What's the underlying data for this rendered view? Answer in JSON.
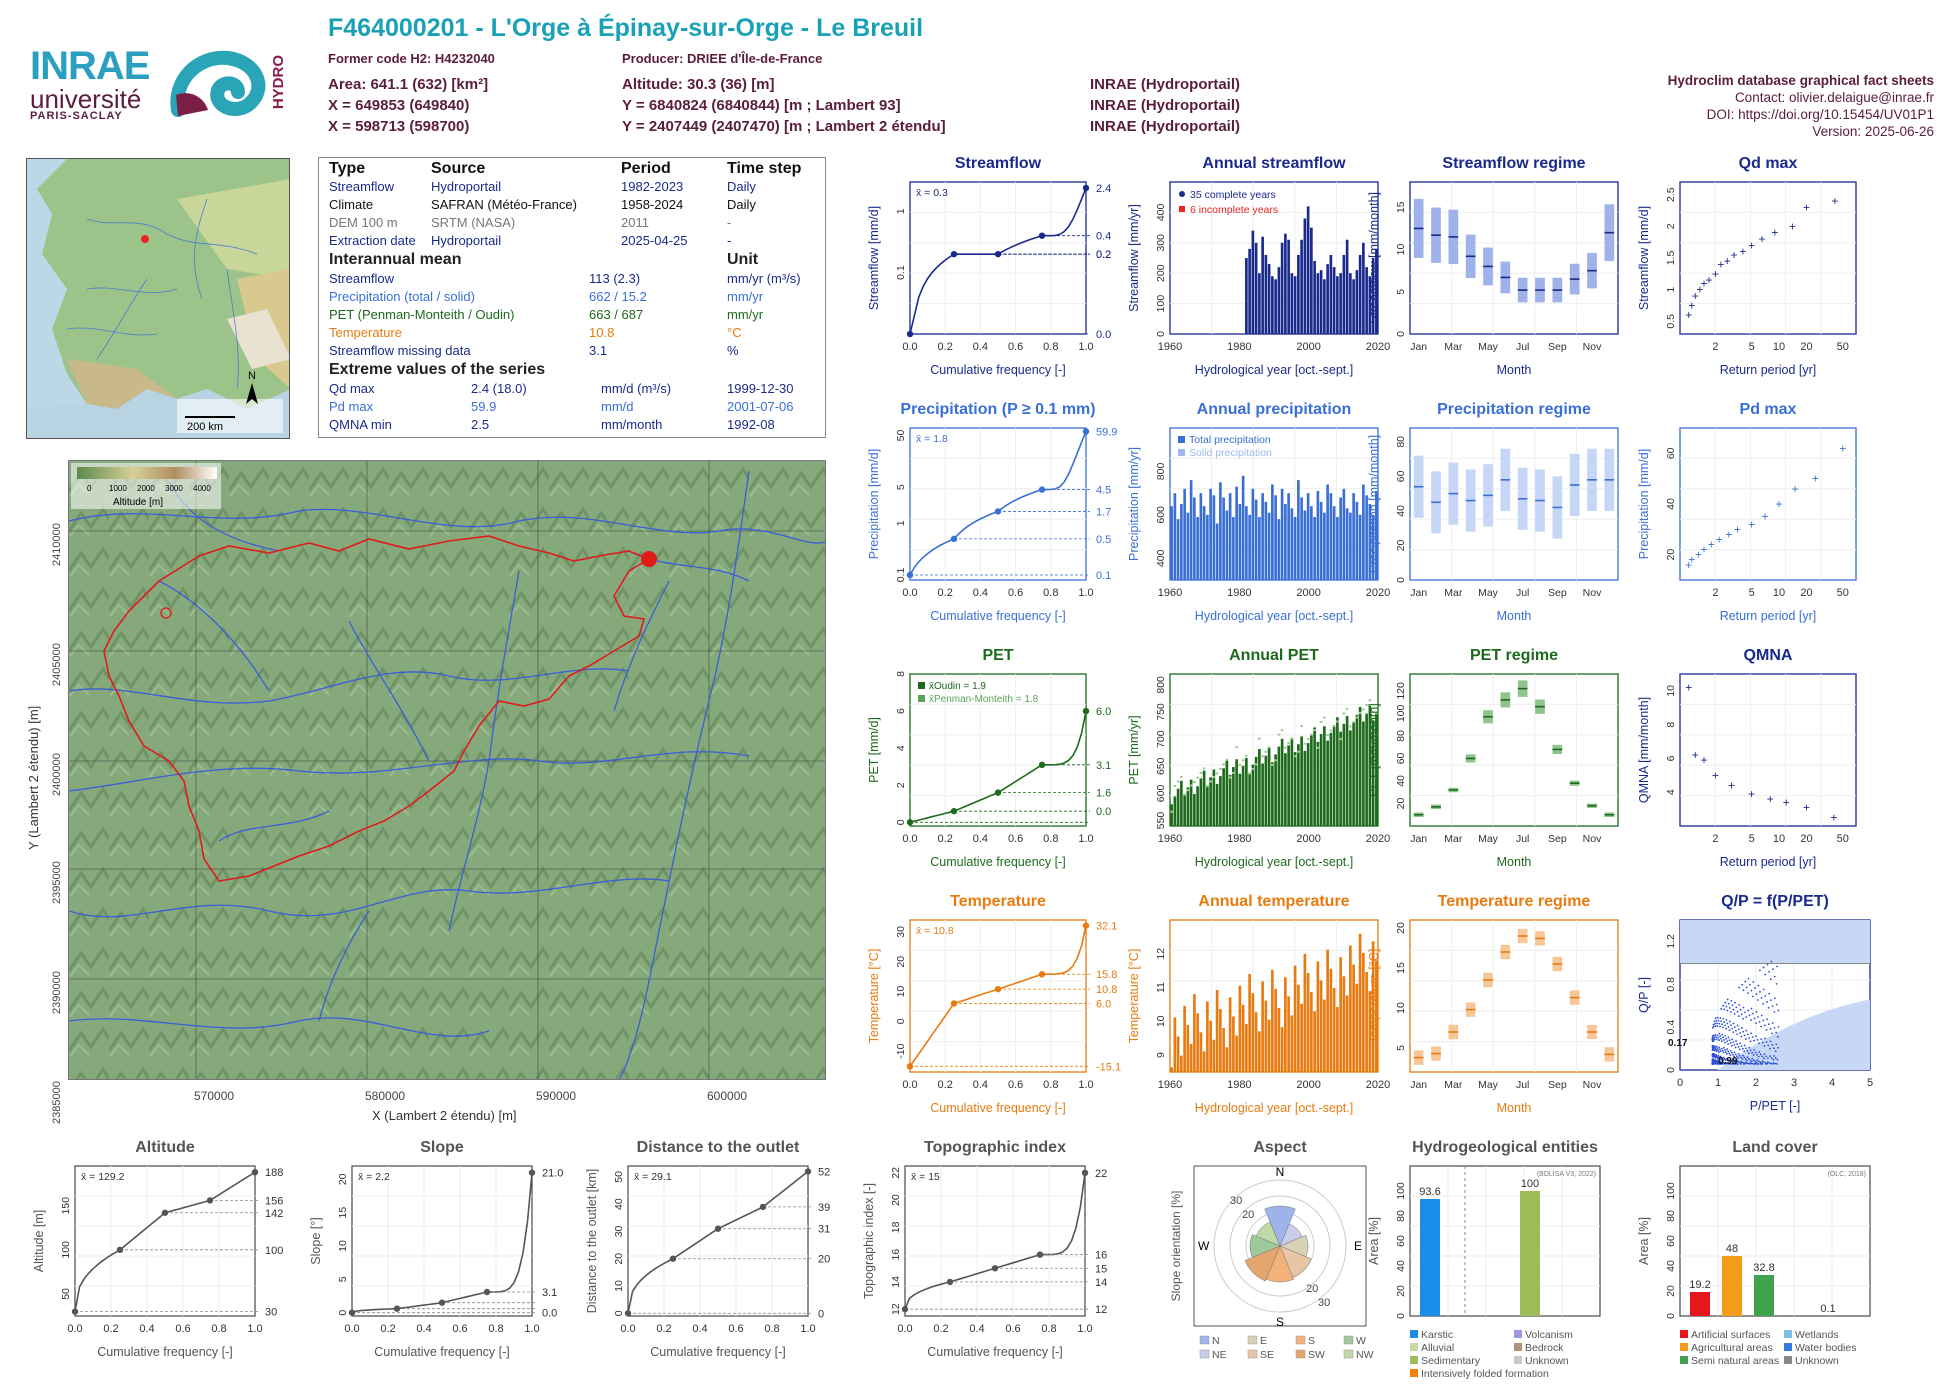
{
  "header": {
    "logo_inrae": "INRAE",
    "logo_universite": "université",
    "logo_paris_saclay": "PARIS-SACLAY",
    "logo_hydro": "HYDRO",
    "title": "F464000201 - L'Orge à Épinay-sur-Orge - Le Breuil",
    "former_code": "Former code H2: H4232040",
    "producer": "Producer: DRIEE d'Île-de-France",
    "area": "Area: 641.1 (632) [km²]",
    "x1": "X = 649853 (649840)",
    "x2": "X = 598713 (598700)",
    "altitude": "Altitude: 30.3 (36) [m]",
    "y1": "Y = 6840824 (6840844) [m ; Lambert 93]",
    "y2": "Y = 2407449 (2407470) [m ; Lambert 2 étendu]",
    "src1": "INRAE (Hydroportail)",
    "src2": "INRAE (Hydroportail)",
    "src3": "INRAE (Hydroportail)",
    "db_title": "Hydroclim database graphical fact sheets",
    "contact": "Contact: olivier.delaigue@inrae.fr",
    "doi": "DOI: https://doi.org/10.15454/UV01P1",
    "version": "Version: 2025-06-26"
  },
  "info": {
    "col_type": "Type",
    "col_source": "Source",
    "col_period": "Period",
    "col_timestep": "Time step",
    "rows": [
      {
        "type": "Streamflow",
        "source": "Hydroportail",
        "period": "1982-2023",
        "step": "Daily"
      },
      {
        "type": "Climate",
        "source": "SAFRAN (Météo-France)",
        "period": "1958-2024",
        "step": "Daily"
      },
      {
        "type": "DEM 100 m",
        "source": "SRTM (NASA)",
        "period": "2011",
        "step": "-"
      },
      {
        "type": "Extraction date",
        "source": "Hydroportail",
        "period": "2025-04-25",
        "step": "-"
      }
    ],
    "interannual": "Interannual mean",
    "unit": "Unit",
    "means": [
      {
        "label": "Streamflow",
        "value": "113 (2.3)",
        "unit": "mm/yr (m³/s)"
      },
      {
        "label": "Precipitation (total / solid)",
        "value": "662 / 15.2",
        "unit": "mm/yr"
      },
      {
        "label": "PET (Penman-Monteith / Oudin)",
        "value": "663 / 687",
        "unit": "mm/yr"
      },
      {
        "label": "Temperature",
        "value": "10.8",
        "unit": "°C"
      },
      {
        "label": "Streamflow missing data",
        "value": "3.1",
        "unit": "%"
      }
    ],
    "extreme": "Extreme values of the series",
    "extremes": [
      {
        "label": "Qd max",
        "value": "2.4 (18.0)",
        "unit": "mm/d (m³/s)",
        "date": "1999-12-30"
      },
      {
        "label": "Pd max",
        "value": "59.9",
        "unit": "mm/d",
        "date": "2001-07-06"
      },
      {
        "label": "QMNA min",
        "value": "2.5",
        "unit": "mm/month",
        "date": "1992-08"
      }
    ]
  },
  "inset_map": {
    "scale": "200 km",
    "north": "N"
  },
  "main_map": {
    "legend_title": "Altitude [m]",
    "legend_ticks": [
      "0",
      "1000",
      "2000",
      "3000",
      "4000"
    ],
    "xlabel": "X (Lambert 2 étendu) [m]",
    "ylabel": "Y (Lambert 2 étendu) [m]",
    "xticks": [
      "570000",
      "580000",
      "590000",
      "600000"
    ],
    "yticks": [
      "2410000",
      "2405000",
      "2400000",
      "2395000",
      "2390000",
      "2385000",
      "2380000"
    ]
  },
  "colors": {
    "streamflow": "#1a2a8c",
    "precip": "#3a6fd6",
    "pet": "#1d6a1d",
    "temp": "#e87b10",
    "grey": "#555555",
    "title_teal": "#19a2b5",
    "maroon": "#5a1e3c"
  },
  "panels": {
    "streamflow": {
      "title": "Streamflow",
      "ylabel": "Streamflow [mm/d]",
      "xlabel": "Cumulative frequency [-]",
      "mean": "x̄ = 0.3",
      "right": [
        "2.4",
        "0.4",
        "0.2",
        "0.2",
        "0.0"
      ]
    },
    "annual_streamflow": {
      "title": "Annual streamflow",
      "ylabel": "Streamflow [mm/yr]",
      "xlabel": "Hydrological year [oct.-sept.]",
      "legend": [
        "35 complete years",
        "6 incomplete years"
      ]
    },
    "streamflow_regime": {
      "title": "Streamflow regime",
      "ylabel": "Streamflow [mm/month]",
      "ylabel2": "Streamflow [m³/s]",
      "xlabel": "Month"
    },
    "qd_max": {
      "title": "Qd max",
      "ylabel": "Streamflow [mm/d]",
      "xlabel": "Return period [yr]"
    },
    "precipitation": {
      "title": "Precipitation (P ≥ 0.1 mm)",
      "ylabel": "Precipitation [mm/d]",
      "xlabel": "Cumulative frequency [-]",
      "mean": "x̄ = 1.8",
      "right": [
        "59.9",
        "4.5",
        "1.7",
        "0.5",
        "0.1"
      ]
    },
    "annual_precipitation": {
      "title": "Annual precipitation",
      "ylabel": "Precipitation [mm/yr]",
      "xlabel": "Hydrological year [oct.-sept.]",
      "legend": [
        "Total precipitation",
        "Solid precipitation"
      ]
    },
    "precipitation_regime": {
      "title": "Precipitation regime",
      "ylabel": "Precipitation [mm/month]",
      "xlabel": "Month"
    },
    "pd_max": {
      "title": "Pd max",
      "ylabel": "Precipitation [mm/d]",
      "xlabel": "Return period [yr]"
    },
    "pet": {
      "title": "PET",
      "ylabel": "PET [mm/d]",
      "xlabel": "Cumulative frequency [-]",
      "legend": [
        "x̄Oudin = 1.9",
        "x̄Penman-Monteith = 1.8"
      ],
      "right": [
        "6.0",
        "3.1",
        "1.6",
        "0.0"
      ]
    },
    "annual_pet": {
      "title": "Annual PET",
      "ylabel": "PET [mm/yr]",
      "xlabel": "Hydrological year [oct.-sept.]"
    },
    "pet_regime": {
      "title": "PET regime",
      "ylabel": "PET [mm/month]",
      "xlabel": "Month"
    },
    "qmna": {
      "title": "QMNA",
      "ylabel": "QMNA [mm/month]",
      "xlabel": "Return period [yr]"
    },
    "temperature": {
      "title": "Temperature",
      "ylabel": "Temperature [°C]",
      "xlabel": "Cumulative frequency [-]",
      "mean": "x̄ = 10.8",
      "right": [
        "32.1",
        "15.8",
        "10.8",
        "6.0",
        "-15.1"
      ]
    },
    "annual_temperature": {
      "title": "Annual temperature",
      "ylabel": "Temperature [°C]",
      "xlabel": "Hydrological year [oct.-sept.]"
    },
    "temperature_regime": {
      "title": "Temperature regime",
      "ylabel": "Temperature [°C]",
      "xlabel": "Month"
    },
    "qp": {
      "title": "Q/P = f(P/PET)",
      "ylabel": "Q/P [-]",
      "xlabel": "P/PET [-]",
      "labels": [
        "0.17",
        "0.99"
      ]
    },
    "altitude": {
      "title": "Altitude",
      "ylabel": "Altitude [m]",
      "xlabel": "Cumulative frequency [-]",
      "mean": "x̄ = 129.2",
      "right": [
        "188",
        "156",
        "142",
        "100",
        "30"
      ]
    },
    "slope": {
      "title": "Slope",
      "ylabel": "Slope [°]",
      "xlabel": "Cumulative frequency [-]",
      "mean": "x̄ = 2.2",
      "right": [
        "21.0",
        "3.1",
        "0.0"
      ]
    },
    "distance": {
      "title": "Distance to the outlet",
      "ylabel": "Distance to the outlet [km]",
      "xlabel": "Cumulative frequency [-]",
      "mean": "x̄ = 29.1",
      "right": [
        "52",
        "39",
        "31",
        "20",
        "0"
      ]
    },
    "topo": {
      "title": "Topographic index",
      "ylabel": "Topographic index [-]",
      "xlabel": "Cumulative frequency [-]",
      "mean": "x̄ = 15",
      "right": [
        "22",
        "16",
        "15",
        "14",
        "12"
      ]
    },
    "aspect": {
      "title": "Aspect",
      "ylabel": "Slope orientation [%]",
      "dirs": [
        "N",
        "E",
        "S",
        "W"
      ],
      "rings": [
        "20",
        "30",
        "20",
        "30"
      ],
      "legend": [
        "N",
        "E",
        "S",
        "W",
        "NE",
        "SE",
        "SW",
        "NW"
      ]
    },
    "hydrogeo": {
      "title": "Hydrogeological entities",
      "ylabel": "Area [%]",
      "source": "(BDLISA V3, 2022)",
      "legend": [
        "Karstic",
        "Volcanism",
        "Alluvial",
        "Bedrock",
        "Sedimentary",
        "Unknown",
        "Intensively folded formation"
      ]
    },
    "landcover": {
      "title": "Land cover",
      "ylabel": "Area [%]",
      "source": "(OLC, 2018)",
      "legend": [
        "Artificial surfaces",
        "Wetlands",
        "Agricultural areas",
        "Water bodies",
        "Semi natural areas",
        "Unknown"
      ]
    }
  },
  "chart_data": [
    {
      "type": "line",
      "title": "Streamflow",
      "x": [
        0,
        0.25,
        0.5,
        0.75,
        1
      ],
      "y": [
        0.0,
        0.2,
        0.2,
        0.4,
        2.4
      ],
      "xlabel": "Cumulative frequency [-]",
      "ylabel": "Streamflow [mm/d]",
      "ylog": true
    },
    {
      "type": "bar",
      "title": "Annual streamflow",
      "x_start": 1982,
      "values": [
        250,
        280,
        340,
        300,
        200,
        320,
        260,
        230,
        190,
        180,
        220,
        300,
        330,
        310,
        200,
        190,
        260,
        310,
        380,
        420,
        350,
        240,
        200,
        210,
        180,
        230,
        260,
        220,
        190,
        200,
        260,
        310,
        200,
        180,
        210,
        260,
        300,
        220,
        190,
        250,
        280
      ],
      "incomplete_years": [
        1982,
        2000,
        2001,
        2002,
        2022,
        2023
      ],
      "ylim": [
        0,
        500
      ]
    },
    {
      "type": "box",
      "title": "Streamflow regime",
      "categories": [
        "Jan",
        "Feb",
        "Mar",
        "Apr",
        "May",
        "Jun",
        "Jul",
        "Aug",
        "Sep",
        "Oct",
        "Nov",
        "Dec"
      ],
      "median": [
        12.5,
        11.7,
        11.5,
        9.2,
        8.0,
        6.7,
        5.2,
        5.2,
        5.2,
        6.5,
        7.5,
        12.0
      ]
    },
    {
      "type": "scatter",
      "title": "Qd max",
      "x": [
        1.02,
        1.1,
        1.2,
        1.35,
        1.5,
        1.7,
        2,
        2.3,
        2.7,
        3.2,
        4,
        5,
        6.5,
        9,
        14,
        20,
        41
      ],
      "y": [
        0.6,
        0.75,
        0.9,
        1.0,
        1.1,
        1.15,
        1.25,
        1.4,
        1.45,
        1.55,
        1.6,
        1.7,
        1.8,
        1.9,
        2.0,
        2.3,
        2.4
      ],
      "xlog": true
    },
    {
      "type": "line",
      "title": "Precipitation (P ≥ 0.1 mm)",
      "x": [
        0,
        0.25,
        0.5,
        0.75,
        1
      ],
      "y": [
        0.1,
        0.5,
        1.7,
        4.5,
        59.9
      ],
      "ylog": true
    },
    {
      "type": "bar",
      "title": "Annual precipitation",
      "x_start": 1959,
      "values": [
        640,
        700,
        580,
        650,
        720,
        610,
        760,
        680,
        590,
        700,
        640,
        600,
        720,
        690,
        560,
        750,
        680,
        620,
        700,
        590,
        730,
        650,
        780,
        640,
        600,
        720,
        670,
        590,
        700,
        660,
        610,
        740,
        690,
        580,
        720,
        650,
        700,
        630,
        590,
        760,
        680,
        620,
        700,
        640,
        590,
        710,
        660,
        610,
        740,
        700,
        640,
        590,
        680,
        720,
        630,
        610,
        700,
        660,
        600,
        740,
        690,
        650,
        600,
        710
      ],
      "ylim": [
        300,
        1000
      ]
    },
    {
      "type": "box",
      "title": "Precipitation regime",
      "categories": [
        "Jan",
        "Feb",
        "Mar",
        "Apr",
        "May",
        "Jun",
        "Jul",
        "Aug",
        "Sep",
        "Oct",
        "Nov",
        "Dec"
      ],
      "median": [
        54,
        45,
        50,
        46,
        49,
        58,
        47,
        46,
        42,
        55,
        58,
        58
      ]
    },
    {
      "type": "scatter",
      "title": "Pd max",
      "x": [
        1.02,
        1.1,
        1.3,
        1.5,
        1.8,
        2.2,
        2.8,
        3.5,
        5,
        7,
        10,
        15,
        25,
        50
      ],
      "y": [
        16,
        18,
        20,
        22,
        24,
        26,
        28,
        30,
        32,
        35,
        40,
        46,
        50,
        62
      ],
      "xlog": true
    },
    {
      "type": "line",
      "title": "PET",
      "x": [
        0,
        0.25,
        0.5,
        0.75,
        1
      ],
      "y": [
        0.0,
        0.6,
        1.6,
        3.1,
        6.0
      ]
    },
    {
      "type": "bar",
      "title": "Annual PET",
      "x_start": 1959,
      "ylim": [
        540,
        820
      ]
    },
    {
      "type": "box",
      "title": "PET regime",
      "categories": [
        "Jan",
        "Feb",
        "Mar",
        "Apr",
        "May",
        "Jun",
        "Jul",
        "Aug",
        "Sep",
        "Oct",
        "Nov",
        "Dec"
      ],
      "median": [
        10,
        17,
        32,
        60,
        97,
        112,
        122,
        106,
        68,
        38,
        18,
        10
      ]
    },
    {
      "type": "scatter",
      "title": "QMNA",
      "x": [
        1.02,
        1.2,
        1.5,
        2,
        3,
        5,
        8,
        12,
        20,
        40
      ],
      "y": [
        10.2,
        6.2,
        5.9,
        5.0,
        4.4,
        3.9,
        3.6,
        3.4,
        3.1,
        2.5
      ],
      "xlog": true
    },
    {
      "type": "line",
      "title": "Temperature",
      "x": [
        0,
        0.25,
        0.5,
        0.75,
        1
      ],
      "y": [
        -15.1,
        6.0,
        10.8,
        15.8,
        32.1
      ]
    },
    {
      "type": "bar",
      "title": "Annual temperature",
      "x_start": 1959,
      "ylim": [
        8.5,
        13
      ]
    },
    {
      "type": "box",
      "title": "Temperature regime",
      "categories": [
        "Jan",
        "Feb",
        "Mar",
        "Apr",
        "May",
        "Jun",
        "Jul",
        "Aug",
        "Sep",
        "Oct",
        "Nov",
        "Dec"
      ],
      "median": [
        3.8,
        4.3,
        7.0,
        9.8,
        13.5,
        17.0,
        19.0,
        18.7,
        15.5,
        11.3,
        7.0,
        4.2
      ]
    },
    {
      "type": "scatter",
      "title": "Q/P = f(P/PET)",
      "xlim": [
        0,
        5
      ],
      "ylim": [
        0,
        1.4
      ],
      "labels": {
        "q_over_p": 0.17,
        "p_over_pet": 0.99
      }
    },
    {
      "type": "line",
      "title": "Altitude",
      "x": [
        0,
        0.25,
        0.5,
        0.75,
        1
      ],
      "y": [
        30,
        100,
        142,
        156,
        188
      ]
    },
    {
      "type": "line",
      "title": "Slope",
      "x": [
        0,
        0.25,
        0.5,
        0.75,
        1
      ],
      "y": [
        0.0,
        0.6,
        1.5,
        3.1,
        21.0
      ]
    },
    {
      "type": "line",
      "title": "Distance to the outlet",
      "x": [
        0,
        0.25,
        0.5,
        0.75,
        1
      ],
      "y": [
        0,
        20,
        31,
        39,
        52
      ]
    },
    {
      "type": "line",
      "title": "Topographic index",
      "x": [
        0,
        0.25,
        0.5,
        0.75,
        1
      ],
      "y": [
        12,
        14,
        15,
        16,
        22
      ]
    },
    {
      "type": "bar",
      "title": "Hydrogeological entities",
      "categories": [
        "Karstic",
        "Sedimentary"
      ],
      "values": [
        93.6,
        100
      ]
    },
    {
      "type": "bar",
      "title": "Land cover",
      "categories": [
        "Artificial surfaces",
        "Agricultural areas",
        "Semi natural areas",
        "Water bodies"
      ],
      "values": [
        19.2,
        48,
        32.8,
        0.1
      ]
    }
  ]
}
